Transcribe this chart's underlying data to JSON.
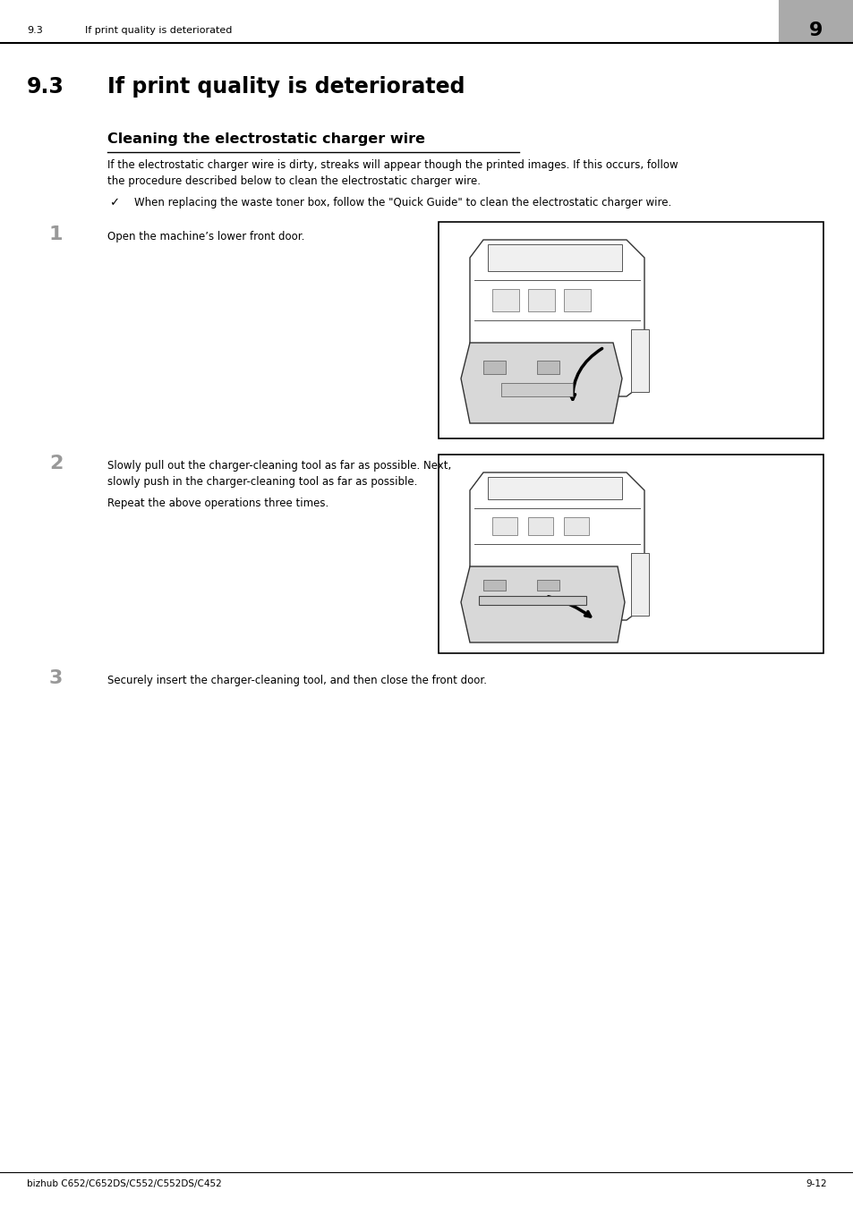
{
  "page_bg": "#ffffff",
  "header_section": "9.3",
  "header_title": "If print quality is deteriorated",
  "header_chapter_num": "9",
  "header_chapter_bg": "#aaaaaa",
  "footer_left": "bizhub C652/C652DS/C552/C552DS/C452",
  "footer_right": "9-12",
  "section_num": "9.3",
  "section_title": "If print quality is deteriorated",
  "subsection_title": "Cleaning the electrostatic charger wire",
  "body_text1_line1": "If the electrostatic charger wire is dirty, streaks will appear though the printed images. If this occurs, follow",
  "body_text1_line2": "the procedure described below to clean the electrostatic charger wire.",
  "checkmark_text": "When replacing the waste toner box, follow the \"Quick Guide\" to clean the electrostatic charger wire.",
  "step1_num": "1",
  "step1_text": "Open the machine’s lower front door.",
  "step2_num": "2",
  "step2_text1_line1": "Slowly pull out the charger-cleaning tool as far as possible. Next,",
  "step2_text1_line2": "slowly push in the charger-cleaning tool as far as possible.",
  "step2_text2": "Repeat the above operations three times.",
  "step3_num": "3",
  "step3_text": "Securely insert the charger-cleaning tool, and then close the front door.",
  "colors": {
    "black": "#000000",
    "dark_gray": "#444444",
    "medium_gray": "#888888",
    "light_gray": "#cccccc",
    "header_bg": "#aaaaaa",
    "step_num_gray": "#999999"
  }
}
